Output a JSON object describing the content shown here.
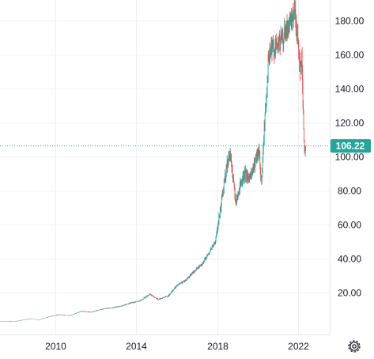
{
  "chart_data": {
    "type": "line",
    "style": "candlestick-dense",
    "y_ticks": [
      "20.00",
      "40.00",
      "60.00",
      "80.00",
      "100.00",
      "120.00",
      "140.00",
      "160.00",
      "180.00"
    ],
    "x_ticks": [
      "2010",
      "2014",
      "2018",
      "2022"
    ],
    "ylim": [
      0,
      190
    ],
    "xlim": [
      "2007-04-01",
      "2023-08-01"
    ],
    "grid": true,
    "y_axis_position": "right",
    "last_price": "106.22",
    "series": [
      {
        "x": [
          "2007-04-01",
          "2008-01-01",
          "2008-09-01",
          "2009-03-01",
          "2009-10-01",
          "2010-03-01",
          "2010-10-01",
          "2011-04-01",
          "2011-10-01",
          "2012-04-01",
          "2012-10-01",
          "2013-04-01",
          "2013-10-01",
          "2014-03-01",
          "2014-09-01",
          "2015-02-01",
          "2015-08-01",
          "2016-01-01",
          "2016-06-01",
          "2016-12-01",
          "2017-05-01",
          "2017-08-01",
          "2017-12-01",
          "2018-02-01",
          "2018-04-01",
          "2018-07-01",
          "2018-09-01",
          "2018-12-01",
          "2019-03-01",
          "2019-06-01",
          "2019-09-01",
          "2019-12-01",
          "2020-02-01",
          "2020-03-15",
          "2020-05-01",
          "2020-07-15",
          "2020-09-01",
          "2020-12-01",
          "2021-03-01",
          "2021-06-01",
          "2021-09-01",
          "2021-11-01",
          "2022-01-01",
          "2022-02-15",
          "2022-03-15",
          "2022-04-15",
          "2022-05-01",
          "2022-05-24"
        ],
        "values": [
          3,
          3,
          4.5,
          4,
          6,
          7,
          6.5,
          9,
          8.5,
          10,
          11,
          12,
          14,
          15,
          19,
          16,
          18,
          24,
          27,
          33,
          38,
          43,
          50,
          63,
          76,
          95,
          101,
          73,
          83,
          90,
          87,
          98,
          103,
          84,
          115,
          155,
          163,
          165,
          168,
          174,
          177,
          186,
          168,
          152,
          157,
          120,
          101,
          106.22
        ]
      }
    ],
    "colors": {
      "up": "#26a69a",
      "down": "#ef5350",
      "grid": "#eef0f4",
      "axis_text": "#131722",
      "price_line": "#26a69a",
      "price_badge": "#26a69a"
    }
  },
  "toolbar": {
    "settings_icon": "gear-icon"
  }
}
